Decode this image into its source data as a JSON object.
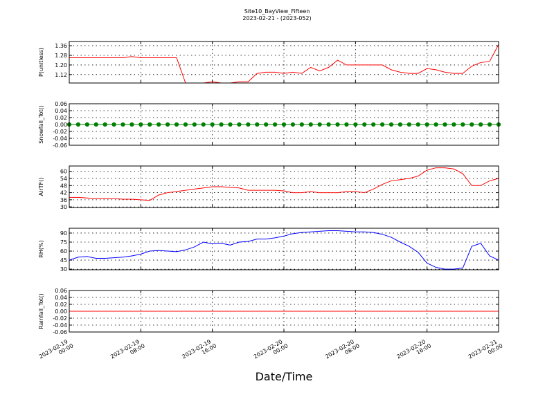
{
  "chart_data": {
    "type": "multi",
    "title": "Site10_BayView_Fifteen",
    "subtitle": "2023-02-21 - (2023-052)",
    "xlabel": "Date/Time",
    "xlim": [
      "2023-02-19 00:00",
      "2023-02-21 00:00"
    ],
    "xticks": [
      {
        "value": "2023-02-19 00:00",
        "label": [
          "2023-02-19",
          "00:00"
        ]
      },
      {
        "value": "2023-02-19 08:00",
        "label": [
          "2023-02-19",
          "08:00"
        ]
      },
      {
        "value": "2023-02-19 16:00",
        "label": [
          "2023-02-19",
          "16:00"
        ]
      },
      {
        "value": "2023-02-20 00:00",
        "label": [
          "2023-02-20",
          "00:00"
        ]
      },
      {
        "value": "2023-02-20 08:00",
        "label": [
          "2023-02-20",
          "08:00"
        ]
      },
      {
        "value": "2023-02-20 16:00",
        "label": [
          "2023-02-20",
          "16:00"
        ]
      },
      {
        "value": "2023-02-21 00:00",
        "label": [
          "2023-02-21",
          "00:00"
        ]
      }
    ],
    "grid": true,
    "x": [
      "2023-02-19 00:00",
      "2023-02-19 01:00",
      "2023-02-19 02:00",
      "2023-02-19 03:00",
      "2023-02-19 04:00",
      "2023-02-19 05:00",
      "2023-02-19 06:00",
      "2023-02-19 07:00",
      "2023-02-19 08:00",
      "2023-02-19 09:00",
      "2023-02-19 10:00",
      "2023-02-19 11:00",
      "2023-02-19 12:00",
      "2023-02-19 13:00",
      "2023-02-19 14:00",
      "2023-02-19 15:00",
      "2023-02-19 16:00",
      "2023-02-19 17:00",
      "2023-02-19 18:00",
      "2023-02-19 19:00",
      "2023-02-19 20:00",
      "2023-02-19 21:00",
      "2023-02-19 22:00",
      "2023-02-19 23:00",
      "2023-02-20 00:00",
      "2023-02-20 01:00",
      "2023-02-20 02:00",
      "2023-02-20 03:00",
      "2023-02-20 04:00",
      "2023-02-20 05:00",
      "2023-02-20 06:00",
      "2023-02-20 07:00",
      "2023-02-20 08:00",
      "2023-02-20 09:00",
      "2023-02-20 10:00",
      "2023-02-20 11:00",
      "2023-02-20 12:00",
      "2023-02-20 13:00",
      "2023-02-20 14:00",
      "2023-02-20 15:00",
      "2023-02-20 16:00",
      "2023-02-20 17:00",
      "2023-02-20 18:00",
      "2023-02-20 19:00",
      "2023-02-20 20:00",
      "2023-02-20 21:00",
      "2023-02-20 22:00",
      "2023-02-20 23:00",
      "2023-02-21 00:00"
    ],
    "panels": [
      {
        "type": "line",
        "ylabel": "P(unitless)",
        "ylim": [
          1.05,
          1.395
        ],
        "yticks": [
          1.12,
          {
            "value": 1.2,
            "label": "1.20"
          },
          1.28,
          1.36
        ],
        "series": [
          {
            "color": "#ff0000",
            "values": [
              1.26,
              1.26,
              1.26,
              1.26,
              1.26,
              1.26,
              1.26,
              1.27,
              1.26,
              1.26,
              1.26,
              1.26,
              1.26,
              1.05,
              1.05,
              1.05,
              1.06,
              1.05,
              1.05,
              1.06,
              1.06,
              1.13,
              1.14,
              1.14,
              1.13,
              1.14,
              1.13,
              1.18,
              1.15,
              1.18,
              1.24,
              1.2,
              1.2,
              1.2,
              1.2,
              1.2,
              1.16,
              1.14,
              1.13,
              1.13,
              1.17,
              1.16,
              1.14,
              1.13,
              1.13,
              1.19,
              1.22,
              1.23,
              1.37
            ]
          }
        ]
      },
      {
        "type": "line",
        "ylabel": "Snowfall_Tot()",
        "ylim": [
          -0.06,
          0.06
        ],
        "yticks": [
          -0.06,
          -0.04,
          -0.02,
          {
            "value": 0,
            "label": "0.00"
          },
          0.02,
          0.04,
          0.06
        ],
        "series": [
          {
            "color": "#008000",
            "marker": true,
            "values": [
              0,
              0,
              0,
              0,
              0,
              0,
              0,
              0,
              0,
              0,
              0,
              0,
              0,
              0,
              0,
              0,
              0,
              0,
              0,
              0,
              0,
              0,
              0,
              0,
              0,
              0,
              0,
              0,
              0,
              0,
              0,
              0,
              0,
              0,
              0,
              0,
              0,
              0,
              0,
              0,
              0,
              0,
              0,
              0,
              0,
              0,
              0,
              0,
              0
            ]
          }
        ]
      },
      {
        "type": "line",
        "ylabel": "AirTF()",
        "ylim": [
          29.5,
          64.5
        ],
        "yticks": [
          30,
          36,
          42,
          48,
          54,
          60
        ],
        "series": [
          {
            "color": "#ff0000",
            "values": [
              38,
              38,
              37.5,
              37,
              37,
              37,
              36.5,
              36.5,
              36,
              35.5,
              40,
              42,
              43,
              44,
              45,
              46,
              47,
              47,
              46.5,
              46,
              44,
              44,
              44,
              44,
              43.5,
              42,
              42,
              43,
              42,
              42,
              42,
              43,
              43,
              42,
              45,
              49,
              52,
              53,
              54,
              56,
              61,
              63,
              63,
              62,
              58,
              48,
              48,
              52,
              54
            ]
          }
        ]
      },
      {
        "type": "line",
        "ylabel": "RH(%)",
        "ylim": [
          29,
          98
        ],
        "yticks": [
          30,
          45,
          60,
          75,
          90
        ],
        "series": [
          {
            "color": "#0000ff",
            "values": [
              45,
              50,
              51,
              48,
              48,
              49,
              50,
              52,
              55,
              60,
              61,
              60,
              59,
              62,
              67,
              75,
              72,
              73,
              70,
              75,
              76,
              80,
              80,
              82,
              85,
              89,
              91,
              92,
              93,
              94,
              94,
              93,
              92,
              92,
              91,
              88,
              83,
              75,
              68,
              58,
              40,
              33,
              30,
              30,
              32,
              68,
              73,
              52,
              45
            ]
          }
        ]
      },
      {
        "type": "line",
        "ylabel": "Rainfall_Tot()",
        "ylim": [
          -0.06,
          0.06
        ],
        "yticks": [
          -0.06,
          -0.04,
          -0.02,
          {
            "value": 0,
            "label": "0.00"
          },
          0.02,
          0.04,
          0.06
        ],
        "series": [
          {
            "color": "#ff0000",
            "values": [
              0,
              0,
              0,
              0,
              0,
              0,
              0,
              0,
              0,
              0,
              0,
              0,
              0,
              0,
              0,
              0,
              0,
              0,
              0,
              0,
              0,
              0,
              0,
              0,
              0,
              0,
              0,
              0,
              0,
              0,
              0,
              0,
              0,
              0,
              0,
              0,
              0,
              0,
              0,
              0,
              0,
              0,
              0,
              0,
              0,
              0,
              0,
              0,
              0
            ]
          }
        ]
      }
    ]
  }
}
